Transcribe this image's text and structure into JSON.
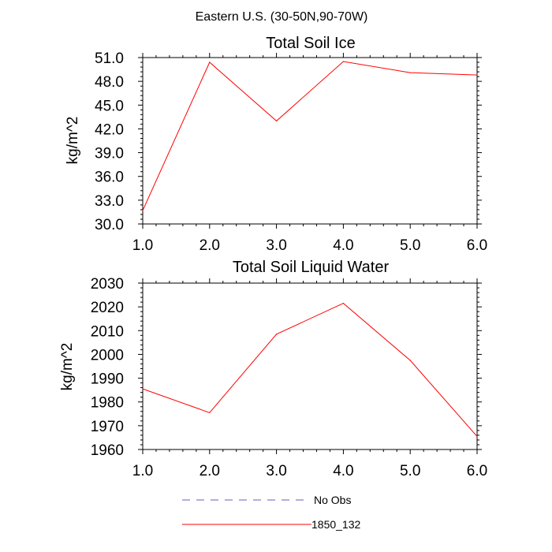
{
  "page": {
    "title": "Eastern U.S. (30-50N,90-70W)"
  },
  "chart_data": [
    {
      "type": "line",
      "title": "Total Soil Ice",
      "xlabel": "",
      "ylabel": "kg/m^2",
      "xlim": [
        1.0,
        6.0
      ],
      "ylim": [
        30.0,
        51.0
      ],
      "x_ticks": [
        "1.0",
        "2.0",
        "3.0",
        "4.0",
        "5.0",
        "6.0"
      ],
      "x_tick_values": [
        1,
        2,
        3,
        4,
        5,
        6
      ],
      "y_ticks": [
        "30.0",
        "33.0",
        "36.0",
        "39.0",
        "42.0",
        "45.0",
        "48.0",
        "51.0"
      ],
      "y_tick_values": [
        30,
        33,
        36,
        39,
        42,
        45,
        48,
        51
      ],
      "grid": false,
      "series": [
        {
          "name": "1850_132",
          "color": "#ff0000",
          "x": [
            1,
            2,
            3,
            4,
            5,
            6
          ],
          "values": [
            31.7,
            50.4,
            43.0,
            50.5,
            49.1,
            48.8
          ]
        }
      ]
    },
    {
      "type": "line",
      "title": "Total Soil Liquid Water",
      "xlabel": "",
      "ylabel": "kg/m^2",
      "xlim": [
        1.0,
        6.0
      ],
      "ylim": [
        1960,
        2030
      ],
      "x_ticks": [
        "1.0",
        "2.0",
        "3.0",
        "4.0",
        "5.0",
        "6.0"
      ],
      "x_tick_values": [
        1,
        2,
        3,
        4,
        5,
        6
      ],
      "y_ticks": [
        "1960",
        "1970",
        "1980",
        "1990",
        "2000",
        "2010",
        "2020",
        "2030"
      ],
      "y_tick_values": [
        1960,
        1970,
        1980,
        1990,
        2000,
        2010,
        2020,
        2030
      ],
      "grid": false,
      "series": [
        {
          "name": "1850_132",
          "color": "#ff0000",
          "x": [
            1,
            2,
            3,
            4,
            5,
            6
          ],
          "values": [
            1985.5,
            1975.5,
            2008.5,
            2021.5,
            1997.5,
            1965.5
          ]
        }
      ]
    }
  ],
  "legend": {
    "placement": "bottom",
    "entries": [
      {
        "label": "No Obs",
        "color": "#6a5acd",
        "style": "dashed"
      },
      {
        "label": "1850_132",
        "color": "#ff0000",
        "style": "solid"
      }
    ]
  }
}
